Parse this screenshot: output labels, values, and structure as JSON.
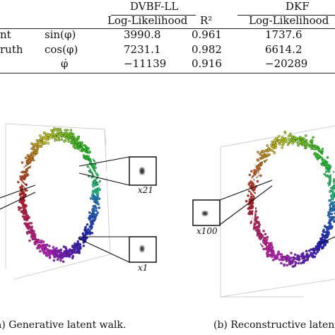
{
  "table": {
    "group_headers": [
      "DVBF-LL",
      "DKF"
    ],
    "col_headers": [
      "Log-Likelihood",
      "R²",
      "Log-Likelihood"
    ],
    "row_side_labels": [
      "nt",
      "ruth"
    ],
    "rows": [
      {
        "label": "sin(φ)",
        "ll": "3990.8",
        "r2": "0.961",
        "ll2": "1737.6"
      },
      {
        "label": "cos(φ)",
        "ll": "7231.1",
        "r2": "0.982",
        "ll2": "6614.2"
      },
      {
        "label": "φ̇",
        "ll": "−11139",
        "r2": "0.916",
        "ll2": "−20289"
      }
    ]
  },
  "figure": {
    "left": {
      "inset_top_label": "x21",
      "inset_bottom_label": "x1",
      "caption": "a) Generative latent walk."
    },
    "right": {
      "inset_label": "x100",
      "caption": "(b) Reconstructive latent"
    }
  }
}
